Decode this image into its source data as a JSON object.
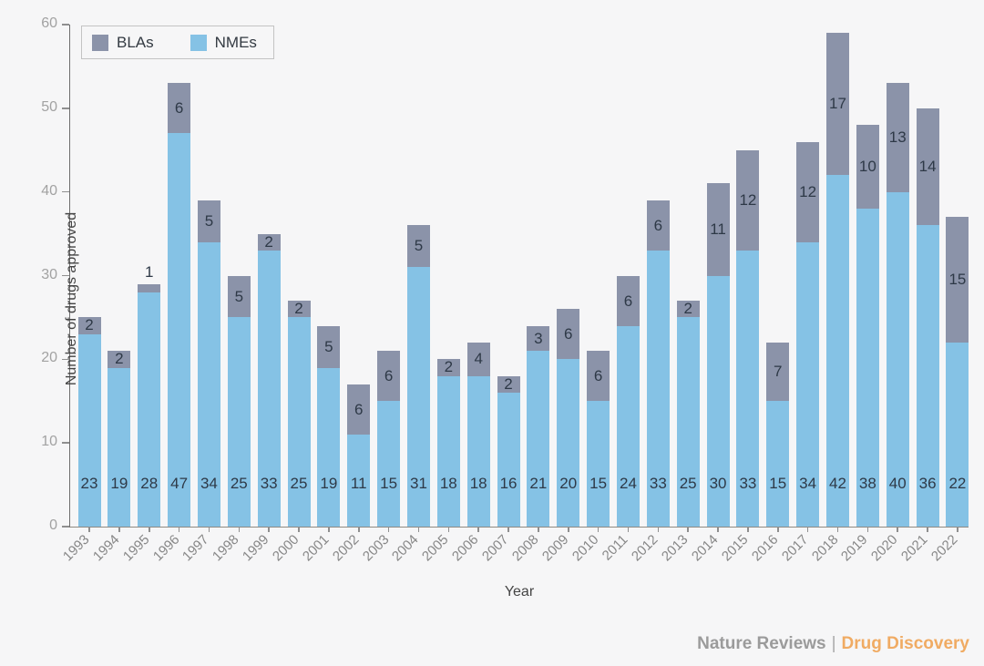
{
  "figure": {
    "background": "#f6f6f7",
    "footer": {
      "brand": "Nature Reviews",
      "separator": "|",
      "journal": "Drug Discovery",
      "brand_color": "#9b9b9b",
      "journal_color": "#f0ab63"
    }
  },
  "chart_data": {
    "type": "bar",
    "stacked": true,
    "title": "",
    "xlabel": "Year",
    "ylabel": "Number of drugs approved",
    "ylim": [
      0,
      60
    ],
    "yticks": [
      0,
      10,
      20,
      30,
      40,
      50,
      60
    ],
    "grid": false,
    "legend_position": "top-left",
    "legend_order": [
      "BLAs",
      "NMEs"
    ],
    "categories": [
      "1993",
      "1994",
      "1995",
      "1996",
      "1997",
      "1998",
      "1999",
      "2000",
      "2001",
      "2002",
      "2003",
      "2004",
      "2005",
      "2006",
      "2007",
      "2008",
      "2009",
      "2010",
      "2011",
      "2012",
      "2013",
      "2014",
      "2015",
      "2016",
      "2017",
      "2018",
      "2019",
      "2020",
      "2021",
      "2022"
    ],
    "series": [
      {
        "name": "NMEs",
        "color": "#85c2e5",
        "values": [
          23,
          19,
          28,
          47,
          34,
          25,
          33,
          25,
          19,
          11,
          15,
          31,
          18,
          18,
          16,
          21,
          20,
          15,
          24,
          33,
          25,
          30,
          33,
          15,
          34,
          42,
          38,
          40,
          36,
          22
        ]
      },
      {
        "name": "BLAs",
        "color": "#8b93a9",
        "values": [
          2,
          2,
          1,
          6,
          5,
          5,
          2,
          2,
          5,
          6,
          6,
          5,
          2,
          4,
          2,
          3,
          6,
          6,
          6,
          6,
          2,
          11,
          12,
          7,
          12,
          17,
          10,
          13,
          14,
          15
        ]
      }
    ],
    "label_color": "#2e3947"
  }
}
